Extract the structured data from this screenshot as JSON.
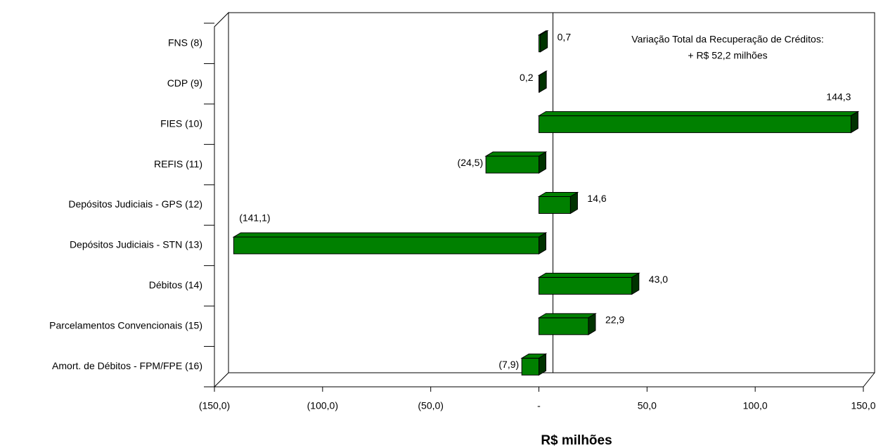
{
  "chart_data": {
    "type": "bar",
    "orientation": "horizontal",
    "categories": [
      "FNS (8)",
      "CDP (9)",
      "FIES (10)",
      "REFIS (11)",
      "Depósitos Judiciais - GPS (12)",
      "Depósitos Judiciais - STN (13)",
      "Débitos  (14)",
      "Parcelamentos Convencionais (15)",
      "Amort. de Débitos - FPM/FPE (16)"
    ],
    "values": [
      0.7,
      0.2,
      144.3,
      -24.5,
      14.6,
      -141.1,
      43.0,
      22.9,
      -7.9
    ],
    "value_labels": [
      "0,7",
      "0,2",
      "144,3",
      "(24,5)",
      "14,6",
      "(141,1)",
      "43,0",
      "22,9",
      "(7,9)"
    ],
    "color": "#008000",
    "xlim": [
      -150,
      150
    ],
    "xticks": [
      {
        "value": -150,
        "label": "(150,0)"
      },
      {
        "value": -100,
        "label": "(100,0)"
      },
      {
        "value": -50,
        "label": "(50,0)"
      },
      {
        "value": 0,
        "label": "-"
      },
      {
        "value": 50,
        "label": "50,0"
      },
      {
        "value": 100,
        "label": "100,0"
      },
      {
        "value": 150,
        "label": "150,0"
      }
    ],
    "xlabel": "R$ milhões",
    "annotation": [
      "Variação Total da Recuperação de Créditos:",
      "+ R$ 52,2 milhões"
    ],
    "annotation_color": "#ff0000"
  }
}
